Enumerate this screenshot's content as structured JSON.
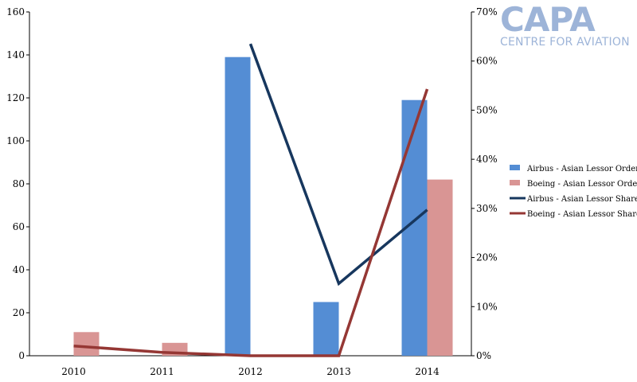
{
  "logo": {
    "main": "CAPA",
    "sub": "CENTRE FOR AVIATION"
  },
  "chart_data": {
    "type": "bar",
    "categories": [
      "2010",
      "2011",
      "2012",
      "2013",
      "2014"
    ],
    "series": [
      {
        "name": "Airbus - Asian Lessor Orders",
        "kind": "bar",
        "axis": "left",
        "color": "#548dd4",
        "values": [
          0,
          0,
          139,
          25,
          119
        ]
      },
      {
        "name": "Boeing - Asian Lessor Orders",
        "kind": "bar",
        "axis": "left",
        "color": "#d99594",
        "values": [
          11,
          6,
          0,
          0,
          82
        ]
      },
      {
        "name": "Airbus - Asian Lessor Share",
        "kind": "line",
        "axis": "right",
        "color": "#17375e",
        "values": [
          null,
          null,
          0.635,
          0.147,
          0.297
        ]
      },
      {
        "name": "Boeing - Asian Lessor Share",
        "kind": "line",
        "axis": "right",
        "color": "#953734",
        "values": [
          0.02,
          0.007,
          0.0,
          0.0,
          0.543
        ]
      }
    ],
    "y_left": {
      "min": 0,
      "max": 160,
      "ticks": [
        "0",
        "20",
        "40",
        "60",
        "80",
        "100",
        "120",
        "140",
        "160"
      ]
    },
    "y_right": {
      "min": 0,
      "max": 0.7,
      "ticks": [
        "0%",
        "10%",
        "20%",
        "30%",
        "40%",
        "50%",
        "60%",
        "70%"
      ]
    },
    "title": "",
    "xlabel": "",
    "ylabel": "",
    "grid": false,
    "legend": "right"
  }
}
